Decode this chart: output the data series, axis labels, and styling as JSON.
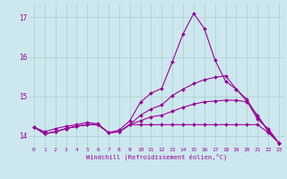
{
  "xlabel": "Windchill (Refroidissement éolien,°C)",
  "background_color": "#cce8ee",
  "grid_color": "#aacccc",
  "line_color": "#990099",
  "xlim": [
    -0.5,
    23.5
  ],
  "ylim": [
    13.72,
    17.35
  ],
  "yticks": [
    14,
    15,
    16,
    17
  ],
  "xticks": [
    0,
    1,
    2,
    3,
    4,
    5,
    6,
    7,
    8,
    9,
    10,
    11,
    12,
    13,
    14,
    15,
    16,
    17,
    18,
    19,
    20,
    21,
    22,
    23
  ],
  "series": [
    [
      14.22,
      14.1,
      14.18,
      14.24,
      14.28,
      14.34,
      14.3,
      14.08,
      14.14,
      14.38,
      14.85,
      15.08,
      15.2,
      15.88,
      16.58,
      17.1,
      16.72,
      15.92,
      15.38,
      15.18,
      14.88,
      14.42,
      14.18,
      13.82
    ],
    [
      14.22,
      14.05,
      14.1,
      14.18,
      14.24,
      14.28,
      14.28,
      14.08,
      14.1,
      14.28,
      14.52,
      14.68,
      14.78,
      15.02,
      15.18,
      15.32,
      15.42,
      15.48,
      15.52,
      15.18,
      14.92,
      14.48,
      14.12,
      13.82
    ],
    [
      14.22,
      14.05,
      14.1,
      14.18,
      14.24,
      14.28,
      14.28,
      14.08,
      14.1,
      14.28,
      14.28,
      14.28,
      14.28,
      14.28,
      14.28,
      14.28,
      14.28,
      14.28,
      14.28,
      14.28,
      14.28,
      14.28,
      14.08,
      13.82
    ],
    [
      14.22,
      14.05,
      14.1,
      14.18,
      14.24,
      14.28,
      14.28,
      14.08,
      14.1,
      14.28,
      14.38,
      14.48,
      14.52,
      14.62,
      14.72,
      14.8,
      14.86,
      14.88,
      14.9,
      14.9,
      14.86,
      14.52,
      14.12,
      13.82
    ]
  ]
}
